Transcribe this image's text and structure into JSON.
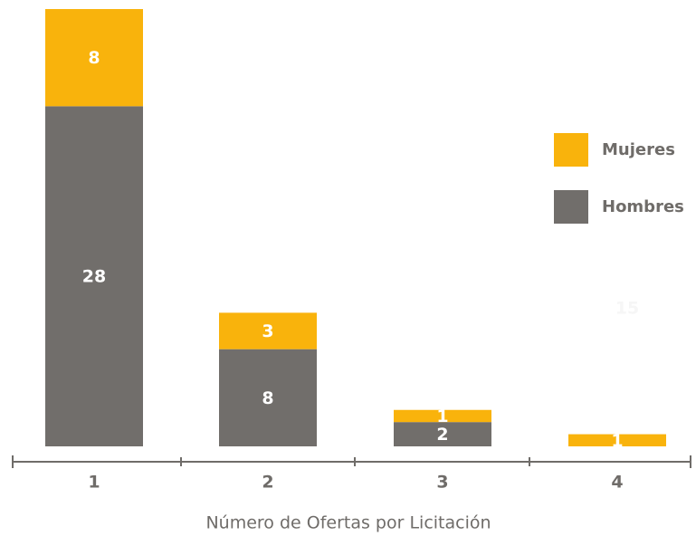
{
  "chart_data": {
    "type": "stacked_bar",
    "x_label": "Número de Ofertas por Licitación",
    "categories": [
      "1",
      "2",
      "3",
      "4"
    ],
    "series": [
      {
        "name": "Hombres",
        "color": "#716e6b",
        "values": [
          28,
          8,
          2,
          null
        ]
      },
      {
        "name": "Mujeres",
        "color": "#f9b30c",
        "values": [
          8,
          3,
          1,
          1
        ]
      }
    ],
    "ylim": [
      0,
      36
    ],
    "legend": "right",
    "annotation": "15"
  }
}
